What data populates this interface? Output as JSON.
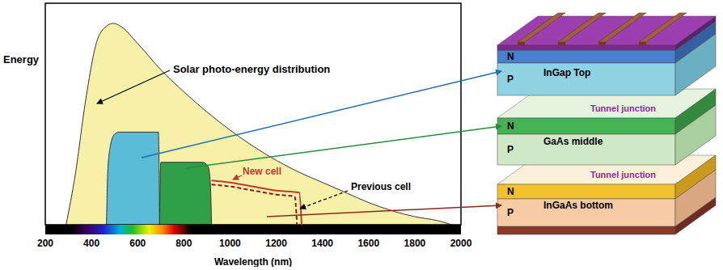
{
  "chart_data": {
    "type": "area",
    "xlabel": "Wavelength (nm)",
    "ylabel": "Energy",
    "xlim": [
      200,
      2000
    ],
    "xticks": [
      200,
      400,
      600,
      800,
      1000,
      1200,
      1400,
      1600,
      1800,
      2000
    ],
    "ylim": [
      0,
      110
    ],
    "tick_labels": "x",
    "series": [
      {
        "name": "Solar photo-energy distribution",
        "color": "#f7f0a8",
        "x": [
          290,
          330,
          375,
          426,
          470,
          494,
          520,
          600,
          700,
          800,
          900,
          1000,
          1100,
          1200,
          1300,
          1400,
          1500,
          1600,
          1700,
          1800,
          1900,
          1960
        ],
        "values": [
          0,
          25,
          62,
          92,
          99,
          100,
          99,
          90,
          77,
          66,
          56,
          47,
          39,
          32,
          26,
          21,
          16,
          11,
          7,
          4,
          2,
          0
        ]
      },
      {
        "color": "#5bbcd8",
        "x": [
          465,
          470,
          480,
          500,
          520,
          690,
          695
        ],
        "values": [
          0,
          25,
          38,
          45,
          46,
          46,
          0
        ]
      },
      {
        "color": "#2fa047",
        "x": [
          695,
          700,
          880,
          905,
          915,
          920
        ],
        "values": [
          0,
          31,
          31,
          29,
          20,
          0
        ]
      },
      {
        "name": "New cell",
        "type": "line",
        "line_style": "solid",
        "color": "#c0392b",
        "x": [
          920,
          1000,
          1100,
          1200,
          1300,
          1310
        ],
        "values": [
          22,
          21,
          19,
          17,
          16,
          0
        ]
      },
      {
        "name": "Previous cell",
        "type": "line",
        "line_style": "dashed",
        "color": "#8b1a1a",
        "x": [
          920,
          1000,
          1100,
          1200,
          1280,
          1290
        ],
        "values": [
          20,
          19,
          17,
          15,
          14,
          0
        ]
      }
    ]
  },
  "diagram": {
    "cells": [
      {
        "name": "InGap Top",
        "layers": [
          "N",
          "P"
        ]
      },
      {
        "name": "GaAs middle",
        "layers": [
          "N",
          "P"
        ]
      },
      {
        "name": "InGaAs bottom",
        "layers": [
          "N",
          "P"
        ]
      }
    ],
    "tunnel_junctions": [
      "Tunnel junction",
      "Tunnel junction"
    ]
  }
}
